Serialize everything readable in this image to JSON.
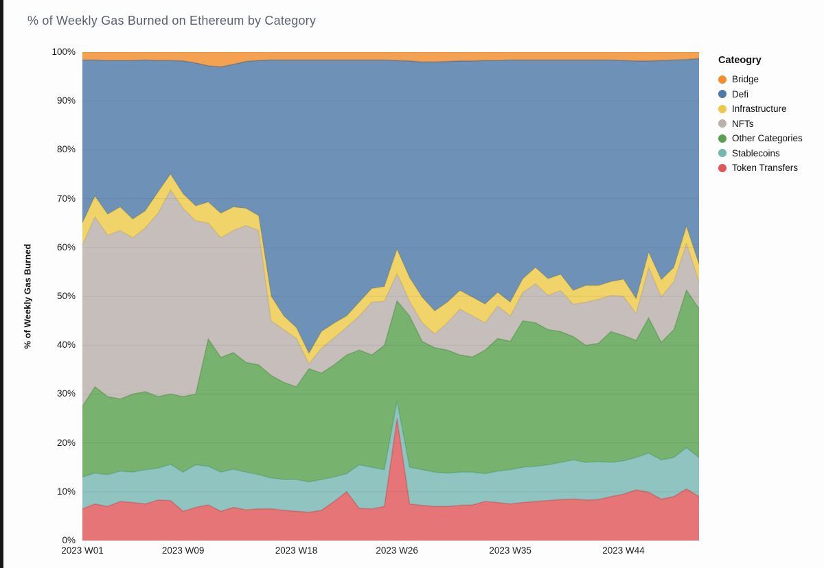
{
  "page": {
    "background": "#fdfdfd",
    "left_edge_bar_color": "#161616"
  },
  "chart_data": {
    "type": "area",
    "stacked": true,
    "title": "% of Weekly Gas Burned on Ethereum by Category",
    "ylabel": "% of Weekly Gas Burned",
    "legend_title": "Cateogry",
    "legend_position": "right",
    "grid": true,
    "ylim": [
      0,
      100
    ],
    "y_ticks": [
      "0%",
      "10%",
      "20%",
      "30%",
      "40%",
      "50%",
      "60%",
      "70%",
      "80%",
      "90%",
      "100%"
    ],
    "x_tick_labels": [
      "2023 W01",
      "2023 W09",
      "2023 W18",
      "2023 W26",
      "2023 W35",
      "2023 W44"
    ],
    "x_tick_weeks": [
      1,
      9,
      18,
      26,
      35,
      44
    ],
    "x": [
      "2023 W01",
      "2023 W02",
      "2023 W03",
      "2023 W04",
      "2023 W05",
      "2023 W06",
      "2023 W07",
      "2023 W08",
      "2023 W09",
      "2023 W10",
      "2023 W11",
      "2023 W12",
      "2023 W13",
      "2023 W14",
      "2023 W15",
      "2023 W16",
      "2023 W17",
      "2023 W18",
      "2023 W19",
      "2023 W20",
      "2023 W21",
      "2023 W22",
      "2023 W23",
      "2023 W24",
      "2023 W25",
      "2023 W26",
      "2023 W27",
      "2023 W28",
      "2023 W29",
      "2023 W30",
      "2023 W31",
      "2023 W32",
      "2023 W33",
      "2023 W34",
      "2023 W35",
      "2023 W36",
      "2023 W37",
      "2023 W38",
      "2023 W39",
      "2023 W40",
      "2023 W41",
      "2023 W42",
      "2023 W43",
      "2023 W44",
      "2023 W45",
      "2023 W46",
      "2023 W47",
      "2023 W48",
      "2023 W49",
      "2023 W50"
    ],
    "series": [
      {
        "name": "Token Transfers",
        "color": "#e15759",
        "values": [
          6.5,
          7.5,
          7.0,
          8.0,
          7.8,
          7.5,
          8.3,
          8.2,
          6.0,
          6.8,
          7.3,
          6.0,
          6.8,
          6.3,
          6.5,
          6.5,
          6.2,
          6.0,
          5.8,
          6.2,
          8.0,
          10.0,
          6.6,
          6.5,
          7.0,
          25.0,
          7.5,
          7.2,
          7.0,
          7.0,
          7.2,
          7.3,
          8.0,
          7.8,
          7.5,
          7.8,
          8.0,
          8.2,
          8.4,
          8.5,
          8.3,
          8.4,
          9.0,
          9.5,
          10.4,
          9.9,
          8.5,
          9.0,
          10.6,
          9.0
        ]
      },
      {
        "name": "Stablecoins",
        "color": "#76b7b2",
        "values": [
          6.5,
          6.3,
          6.5,
          6.2,
          6.2,
          7.0,
          6.5,
          7.4,
          8.0,
          8.7,
          7.9,
          8.0,
          7.8,
          7.7,
          7.0,
          6.3,
          6.3,
          6.5,
          6.2,
          6.3,
          5.0,
          3.7,
          8.9,
          8.5,
          7.5,
          3.5,
          7.5,
          7.3,
          7.0,
          6.8,
          6.8,
          6.7,
          5.7,
          6.4,
          7.0,
          7.2,
          7.2,
          7.3,
          7.6,
          8.0,
          7.7,
          7.8,
          7.0,
          6.8,
          6.6,
          8.0,
          8.0,
          8.0,
          8.4,
          8.0
        ]
      },
      {
        "name": "Other Categories",
        "color": "#59a14f",
        "values": [
          14.5,
          17.7,
          16.0,
          14.8,
          16.0,
          16.0,
          14.7,
          14.4,
          15.5,
          14.5,
          26.1,
          23.5,
          23.9,
          22.5,
          22.5,
          21.0,
          19.9,
          19.0,
          23.2,
          21.8,
          23.0,
          24.3,
          23.5,
          23.0,
          25.5,
          20.6,
          31.0,
          26.3,
          25.5,
          25.2,
          24.0,
          23.6,
          25.3,
          27.2,
          26.3,
          30.0,
          29.4,
          27.7,
          26.8,
          25.3,
          24.0,
          24.2,
          26.8,
          25.7,
          24.0,
          27.7,
          24.1,
          26.2,
          32.3,
          30.5
        ]
      },
      {
        "name": "NFTs",
        "color": "#bab0ac",
        "values": [
          33.0,
          34.8,
          33.0,
          34.5,
          32.0,
          33.5,
          37.5,
          41.8,
          38.5,
          35.5,
          23.7,
          24.5,
          25.0,
          28.0,
          27.5,
          11.2,
          10.8,
          9.9,
          1.0,
          5.1,
          5.5,
          5.7,
          7.0,
          10.8,
          9.0,
          5.6,
          3.0,
          3.8,
          2.8,
          5.6,
          9.4,
          8.4,
          5.6,
          6.6,
          5.2,
          5.8,
          8.0,
          7.0,
          8.4,
          6.6,
          8.8,
          9.0,
          7.4,
          8.0,
          5.5,
          10.3,
          9.3,
          9.8,
          9.5,
          5.5
        ]
      },
      {
        "name": "Infrastructure",
        "color": "#edc948",
        "values": [
          4.5,
          4.2,
          4.3,
          4.8,
          3.8,
          3.5,
          4.3,
          3.2,
          3.0,
          3.0,
          4.3,
          5.0,
          4.8,
          3.5,
          3.0,
          5.0,
          2.8,
          2.2,
          2.1,
          3.4,
          3.0,
          2.3,
          2.8,
          2.8,
          3.0,
          4.9,
          4.8,
          5.2,
          4.7,
          4.2,
          3.8,
          3.8,
          3.8,
          2.8,
          2.8,
          2.8,
          3.3,
          3.4,
          3.3,
          2.8,
          3.4,
          2.8,
          2.8,
          3.5,
          3.0,
          3.1,
          3.5,
          2.9,
          3.5,
          3.5
        ]
      },
      {
        "name": "Defi",
        "color": "#4e79a7",
        "values": [
          33.4,
          27.9,
          31.5,
          30.0,
          32.5,
          30.9,
          27.0,
          23.3,
          27.2,
          29.3,
          27.9,
          30.0,
          29.2,
          30.1,
          31.8,
          48.4,
          52.4,
          54.8,
          60.1,
          55.6,
          53.9,
          52.4,
          49.6,
          46.8,
          46.4,
          38.7,
          44.4,
          48.2,
          51.0,
          49.3,
          47.0,
          48.4,
          49.9,
          47.5,
          49.6,
          44.8,
          42.5,
          44.8,
          43.9,
          47.2,
          46.2,
          46.2,
          45.4,
          44.8,
          48.7,
          39.2,
          44.9,
          42.5,
          34.2,
          42.2
        ]
      },
      {
        "name": "Bridge",
        "color": "#f28e2b",
        "values": [
          1.6,
          1.6,
          1.7,
          1.7,
          1.7,
          1.6,
          1.7,
          1.7,
          1.8,
          2.2,
          2.8,
          3.0,
          2.5,
          1.9,
          1.7,
          1.6,
          1.6,
          1.6,
          1.6,
          1.6,
          1.6,
          1.6,
          1.6,
          1.6,
          1.6,
          1.7,
          1.8,
          2.0,
          2.0,
          1.9,
          1.8,
          1.8,
          1.7,
          1.7,
          1.6,
          1.6,
          1.6,
          1.6,
          1.6,
          1.6,
          1.6,
          1.6,
          1.6,
          1.7,
          1.8,
          1.8,
          1.7,
          1.6,
          1.5,
          1.3
        ]
      }
    ],
    "legend": [
      {
        "label": "Bridge",
        "color": "#f28e2b"
      },
      {
        "label": "Defi",
        "color": "#4e79a7"
      },
      {
        "label": "Infrastructure",
        "color": "#edc948"
      },
      {
        "label": "NFTs",
        "color": "#bab0ac"
      },
      {
        "label": "Other Categories",
        "color": "#59a14f"
      },
      {
        "label": "Stablecoins",
        "color": "#76b7b2"
      },
      {
        "label": "Token Transfers",
        "color": "#e15759"
      }
    ],
    "fill_opacity": 0.82,
    "gridline_color": "rgba(60,60,70,0.10)"
  }
}
